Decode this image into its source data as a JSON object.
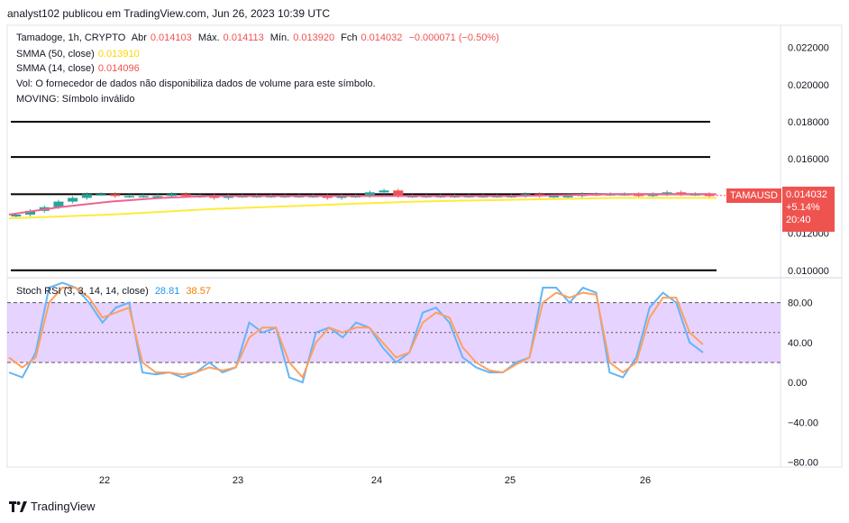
{
  "header": {
    "publisher": "analyst102 publicou em TradingView.com, Jun 26, 2023 10:39 UTC"
  },
  "legend": {
    "symbol": "Tamadoge, 1h, CRYPTO",
    "open_label": "Abr",
    "open": "0.014103",
    "high_label": "Máx.",
    "high": "0.014113",
    "low_label": "Mín.",
    "low": "0.013920",
    "close_label": "Fch",
    "close": "0.014032",
    "change": "−0.000071 (−0.50%)",
    "smma50_label": "SMMA (50, close)",
    "smma50": "0.013910",
    "smma14_label": "SMMA (14, close)",
    "smma14": "0.014096",
    "vol_note": "Vol: O fornecedor de dados não disponibiliza dados de volume para este símbolo.",
    "moving_note": "MOVING: Símbolo inválido"
  },
  "price_tag": {
    "ticker": "TAMAUSD",
    "price": "0.014032",
    "pct": "+5.14%",
    "countdown": "20:40"
  },
  "stoch_legend": {
    "label": "Stoch RSI (3, 3, 14, 14, close)",
    "k": "28.81",
    "d": "38.57"
  },
  "footer": {
    "brand": "TradingView"
  },
  "colors": {
    "smma50": "#ffeb3b",
    "smma14": "#f06292",
    "up": "#26a69a",
    "down": "#ef5350",
    "k_line": "#64b5f6",
    "d_line": "#ffa060",
    "band": "#e1c8ff",
    "tag": "#ef5350"
  },
  "chart_data": [
    {
      "type": "line",
      "title": "Tamadoge, 1h, CRYPTO",
      "x_labels": [
        "22",
        "23",
        "24",
        "25",
        "26"
      ],
      "y_ticks": [
        "0.022000",
        "0.020000",
        "0.018000",
        "0.016000",
        "0.012000",
        "0.010000"
      ],
      "ylim": [
        0.0096,
        0.0232
      ],
      "horizontal_lines": [
        0.018,
        0.0161,
        0.0141,
        0.01
      ],
      "series": [
        {
          "name": "SMMA (50, close)",
          "points": [
            [
              0,
              0.0128
            ],
            [
              40,
              0.013
            ],
            [
              80,
              0.0133
            ],
            [
              120,
              0.0135
            ],
            [
              160,
              0.0137
            ],
            [
              200,
              0.0138
            ],
            [
              240,
              0.0139
            ],
            [
              280,
              0.0139
            ]
          ]
        },
        {
          "name": "SMMA (14, close)",
          "points": [
            [
              0,
              0.013
            ],
            [
              20,
              0.0134
            ],
            [
              40,
              0.0137
            ],
            [
              60,
              0.0139
            ],
            [
              80,
              0.014
            ],
            [
              120,
              0.014
            ],
            [
              160,
              0.014
            ],
            [
              200,
              0.014
            ],
            [
              240,
              0.0141
            ],
            [
              280,
              0.0141
            ]
          ]
        }
      ],
      "candles_close": [
        0.013,
        0.0132,
        0.0134,
        0.0137,
        0.0139,
        0.0141,
        0.0141,
        0.014,
        0.014,
        0.014,
        0.014,
        0.0141,
        0.014,
        0.014,
        0.0139,
        0.014,
        0.014,
        0.014,
        0.014,
        0.014,
        0.014,
        0.014,
        0.0139,
        0.014,
        0.014,
        0.0142,
        0.0143,
        0.014,
        0.014,
        0.014,
        0.014,
        0.014,
        0.014,
        0.014,
        0.014,
        0.014,
        0.0141,
        0.014,
        0.014,
        0.014,
        0.0141,
        0.0141,
        0.0141,
        0.0141,
        0.014,
        0.0141,
        0.0142,
        0.0141,
        0.0141,
        0.014
      ]
    },
    {
      "type": "line",
      "title": "Stoch RSI (3, 3, 14, 14, close)",
      "y_ticks": [
        "80.00",
        "40.00",
        "0.00",
        "−40.00",
        "−80.00"
      ],
      "ylim": [
        -85,
        105
      ],
      "bands": [
        20,
        50,
        80
      ],
      "series": [
        {
          "name": "K",
          "values": [
            10,
            5,
            30,
            95,
            100,
            95,
            80,
            60,
            75,
            80,
            10,
            8,
            10,
            5,
            10,
            20,
            10,
            15,
            60,
            50,
            55,
            5,
            0,
            50,
            55,
            45,
            60,
            55,
            35,
            20,
            30,
            70,
            75,
            60,
            25,
            15,
            10,
            10,
            20,
            25,
            95,
            95,
            80,
            95,
            90,
            10,
            5,
            25,
            75,
            90,
            80,
            40,
            30
          ]
        },
        {
          "name": "D",
          "values": [
            25,
            15,
            25,
            80,
            95,
            95,
            85,
            65,
            70,
            75,
            20,
            10,
            10,
            8,
            10,
            15,
            12,
            15,
            45,
            55,
            55,
            20,
            5,
            40,
            55,
            50,
            55,
            55,
            40,
            25,
            30,
            60,
            70,
            65,
            35,
            20,
            12,
            10,
            18,
            25,
            80,
            90,
            85,
            90,
            88,
            20,
            10,
            20,
            65,
            85,
            85,
            50,
            38
          ]
        }
      ]
    }
  ]
}
